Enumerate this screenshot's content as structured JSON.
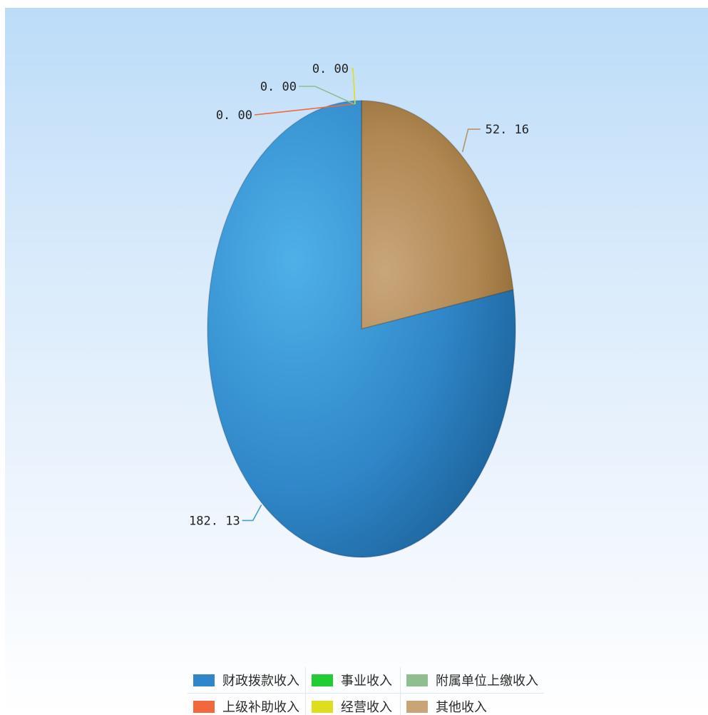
{
  "chart_data": {
    "type": "pie",
    "slices": [
      {
        "label": "财政拨款收入",
        "value": 182.13,
        "value_text": "182.13",
        "color": "#2f86c8"
      },
      {
        "label": "事业收入",
        "value": 0.0,
        "value_text": "0.00",
        "color": "#22cc33"
      },
      {
        "label": "附属单位上缴收入",
        "value": 0.0,
        "value_text": "0.00",
        "color": "#8fbf8f"
      },
      {
        "label": "上级补助收入",
        "value": 0.0,
        "value_text": "0.00",
        "color": "#f2683c"
      },
      {
        "label": "经营收入",
        "value": 0.0,
        "value_text": "0.00",
        "color": "#dede1e"
      },
      {
        "label": "其他收入",
        "value": 52.16,
        "value_text": "52.16",
        "color": "#c8a478"
      }
    ],
    "legend_position": "bottom",
    "title": ""
  }
}
